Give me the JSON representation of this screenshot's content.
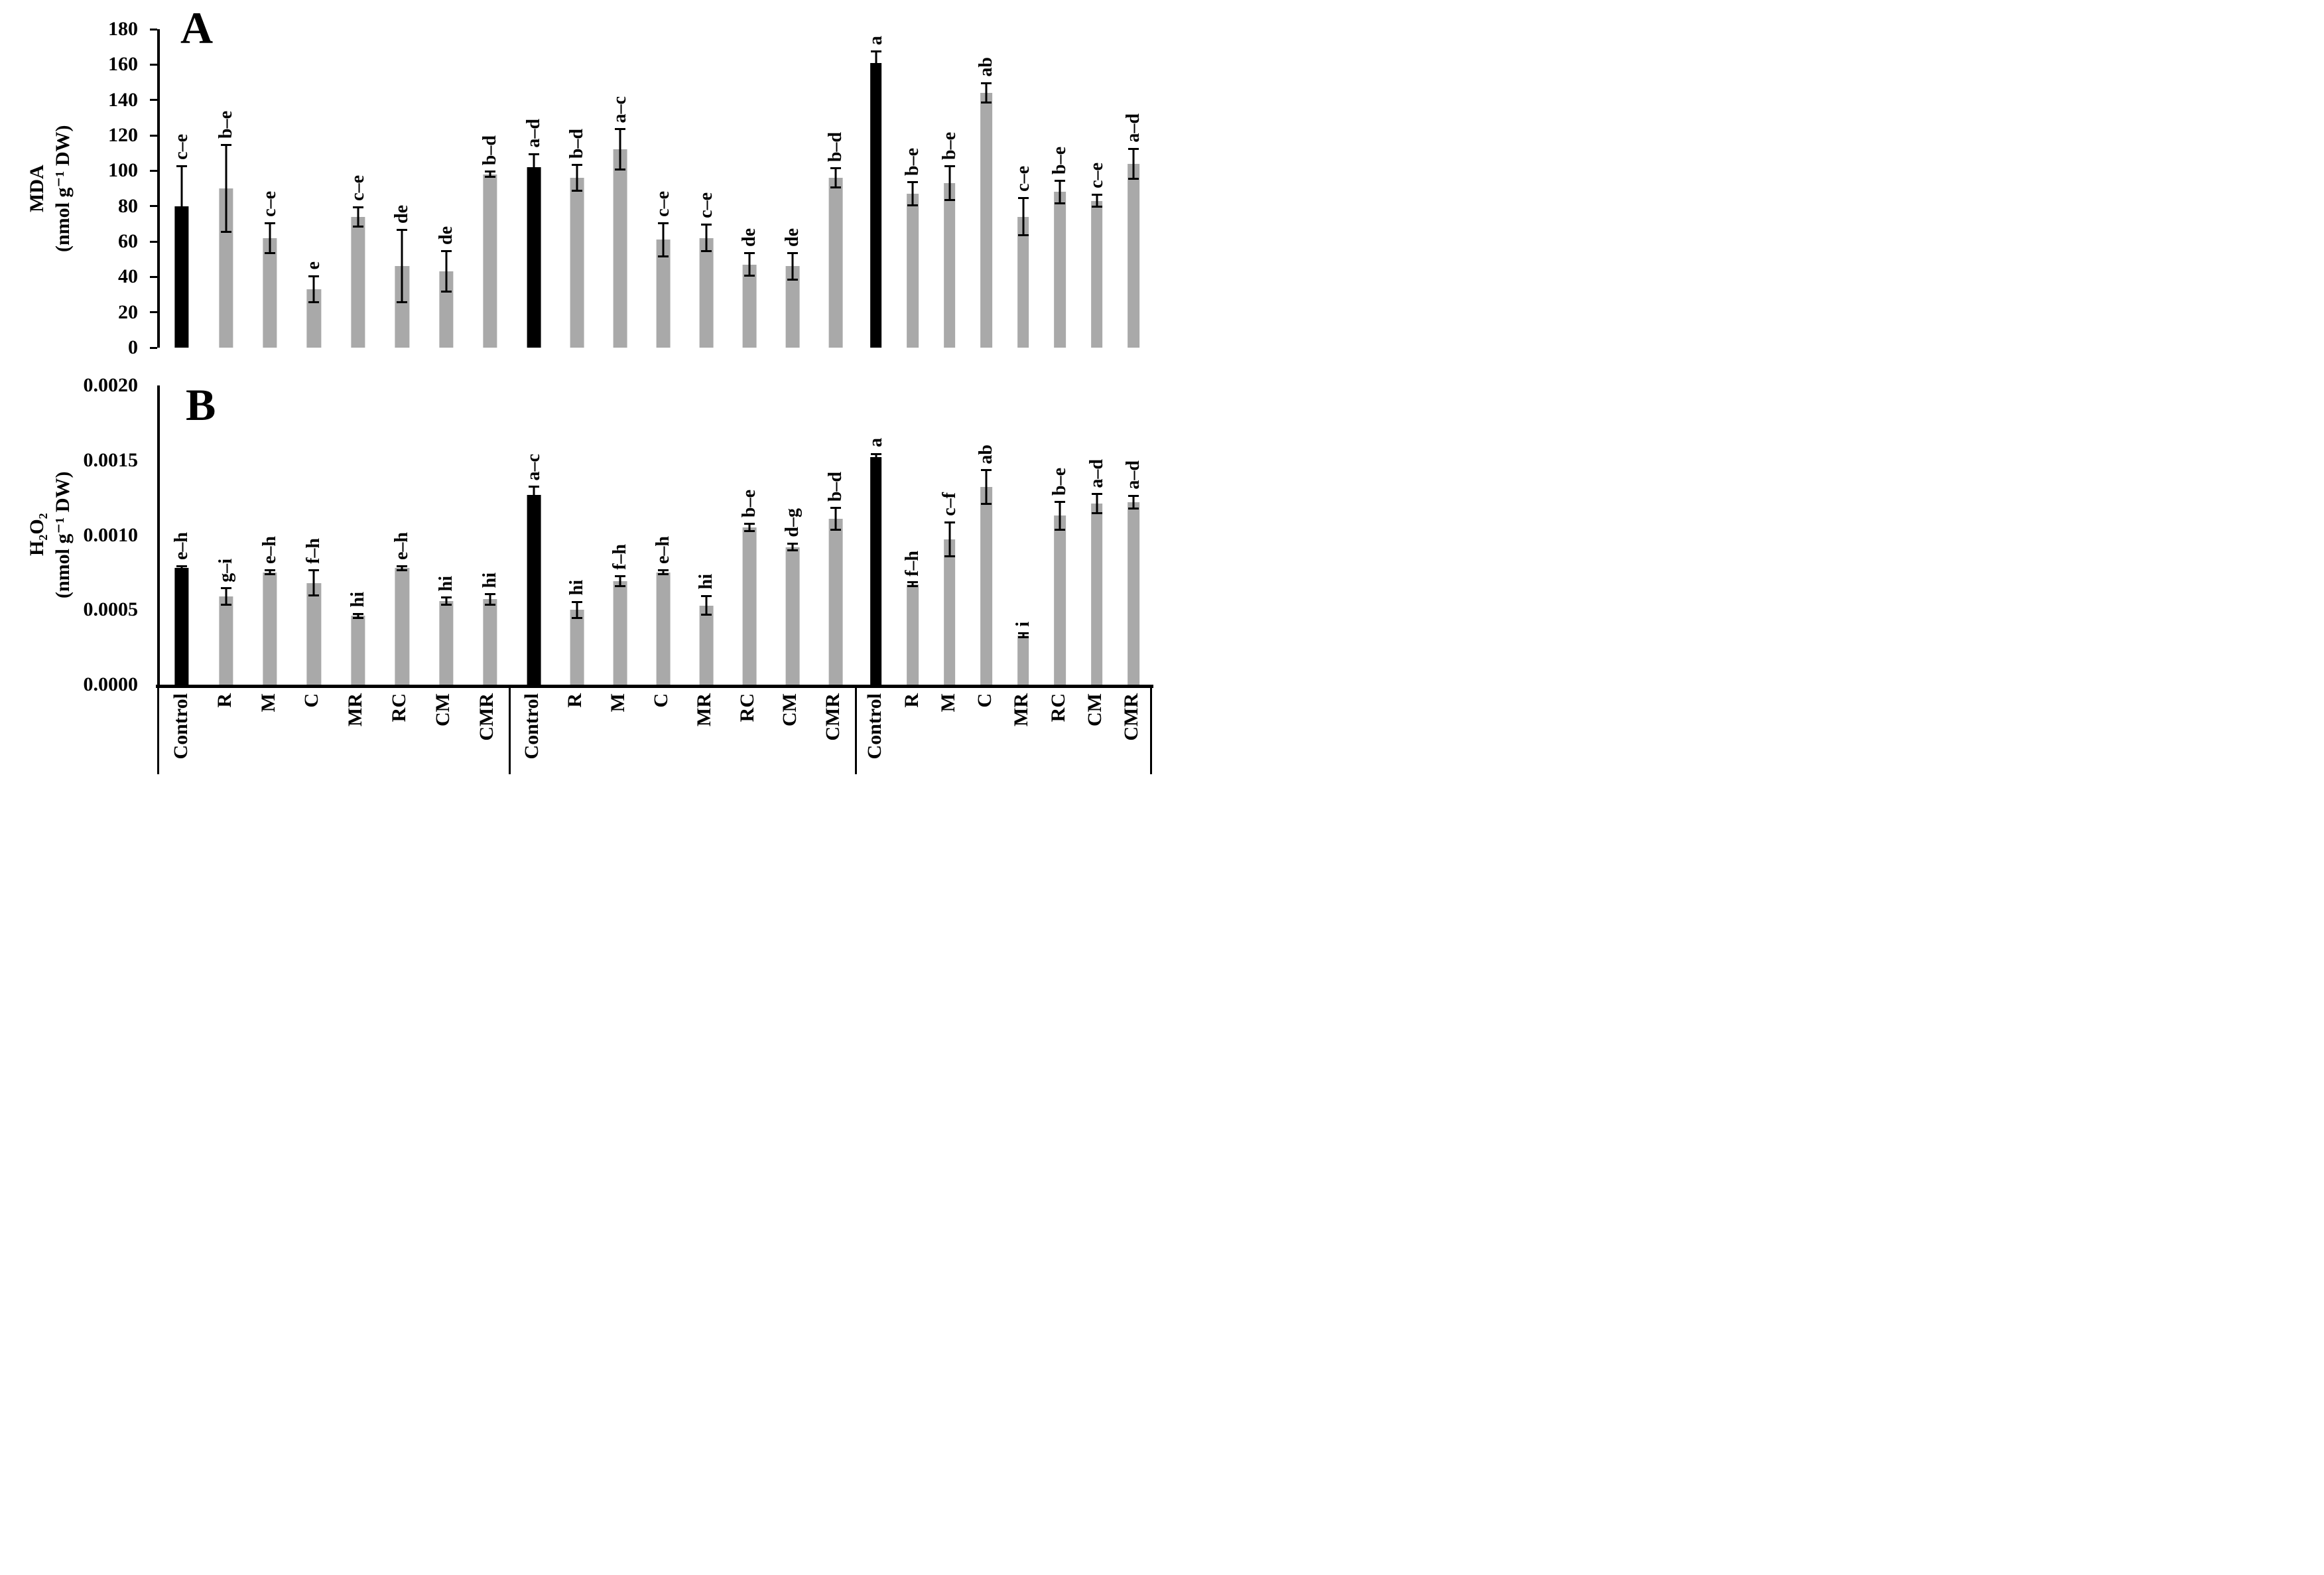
{
  "chart_data": {
    "type": "bar",
    "title": "",
    "legend": "none",
    "grid": false,
    "bar_colors": {
      "control": "#000000",
      "treatment": "#a9a9a9",
      "error": "#000000"
    },
    "categories": [
      "Control",
      "R",
      "M",
      "C",
      "MR",
      "RC",
      "CM",
      "CMR"
    ],
    "group_count": 3,
    "panels": [
      {
        "panel_label": "A",
        "ylabel_line1": "MDA",
        "ylabel_line2": "(nmol g⁻¹ DW)",
        "ylim": [
          0,
          180
        ],
        "yticks": [
          {
            "label": "0",
            "value": 0
          },
          {
            "label": "20",
            "value": 20
          },
          {
            "label": "40",
            "value": 40
          },
          {
            "label": "60",
            "value": 60
          },
          {
            "label": "80",
            "value": 80
          },
          {
            "label": "100",
            "value": 100
          },
          {
            "label": "120",
            "value": 120
          },
          {
            "label": "140",
            "value": 140
          },
          {
            "label": "160",
            "value": 160
          },
          {
            "label": "180",
            "value": 180
          }
        ],
        "groups": [
          {
            "name": "group-1",
            "bars": [
              {
                "treatment": "Control",
                "value": 80,
                "error": 23,
                "letter": "c–e"
              },
              {
                "treatment": "R",
                "value": 90,
                "error": 25,
                "letter": "b–e"
              },
              {
                "treatment": "M",
                "value": 62,
                "error": 9,
                "letter": "c–e"
              },
              {
                "treatment": "C",
                "value": 33,
                "error": 8,
                "letter": "e"
              },
              {
                "treatment": "MR",
                "value": 74,
                "error": 6,
                "letter": "c–e"
              },
              {
                "treatment": "RC",
                "value": 46,
                "error": 21,
                "letter": "de"
              },
              {
                "treatment": "CM",
                "value": 43,
                "error": 12,
                "letter": "de"
              },
              {
                "treatment": "CMR",
                "value": 98,
                "error": 2,
                "letter": "b–d"
              }
            ]
          },
          {
            "name": "group-2",
            "bars": [
              {
                "treatment": "Control",
                "value": 102,
                "error": 8,
                "letter": "a–d"
              },
              {
                "treatment": "R",
                "value": 96,
                "error": 8,
                "letter": "b–d"
              },
              {
                "treatment": "M",
                "value": 112,
                "error": 12,
                "letter": "a–c"
              },
              {
                "treatment": "C",
                "value": 61,
                "error": 10,
                "letter": "c–e"
              },
              {
                "treatment": "MR",
                "value": 62,
                "error": 8,
                "letter": "c–e"
              },
              {
                "treatment": "RC",
                "value": 47,
                "error": 7,
                "letter": "de"
              },
              {
                "treatment": "CM",
                "value": 46,
                "error": 8,
                "letter": "de"
              },
              {
                "treatment": "CMR",
                "value": 96,
                "error": 6,
                "letter": "b–d"
              }
            ]
          },
          {
            "name": "group-3",
            "bars": [
              {
                "treatment": "Control",
                "value": 161,
                "error": 7,
                "letter": "a"
              },
              {
                "treatment": "R",
                "value": 87,
                "error": 7,
                "letter": "b–e"
              },
              {
                "treatment": "M",
                "value": 93,
                "error": 10,
                "letter": "b–e"
              },
              {
                "treatment": "C",
                "value": 144,
                "error": 6,
                "letter": "ab"
              },
              {
                "treatment": "MR",
                "value": 74,
                "error": 11,
                "letter": "c–e"
              },
              {
                "treatment": "RC",
                "value": 88,
                "error": 7,
                "letter": "b–e"
              },
              {
                "treatment": "CM",
                "value": 83,
                "error": 4,
                "letter": "c–e"
              },
              {
                "treatment": "CMR",
                "value": 104,
                "error": 9,
                "letter": "a–d"
              }
            ]
          }
        ]
      },
      {
        "panel_label": "B",
        "ylabel_line1": "H₂O₂",
        "ylabel_line2": "(nmol g⁻¹ DW)",
        "ylim": [
          0,
          0.002
        ],
        "yticks": [
          {
            "label": "0.0000",
            "value": 0
          },
          {
            "label": "0.0005",
            "value": 0.0005
          },
          {
            "label": "0.0010",
            "value": 0.001
          },
          {
            "label": "0.0015",
            "value": 0.0015
          },
          {
            "label": "0.0020",
            "value": 0.002
          }
        ],
        "groups": [
          {
            "name": "group-1",
            "bars": [
              {
                "treatment": "Control",
                "value": 0.00078,
                "error": 2e-05,
                "letter": "e–h"
              },
              {
                "treatment": "R",
                "value": 0.00059,
                "error": 6e-05,
                "letter": "g–i"
              },
              {
                "treatment": "M",
                "value": 0.00075,
                "error": 2e-05,
                "letter": "e–h"
              },
              {
                "treatment": "C",
                "value": 0.00068,
                "error": 9e-05,
                "letter": "f–h"
              },
              {
                "treatment": "MR",
                "value": 0.00046,
                "error": 2e-05,
                "letter": "hi"
              },
              {
                "treatment": "RC",
                "value": 0.00078,
                "error": 2e-05,
                "letter": "e–h"
              },
              {
                "treatment": "CM",
                "value": 0.00056,
                "error": 3e-05,
                "letter": "hi"
              },
              {
                "treatment": "CMR",
                "value": 0.00057,
                "error": 4e-05,
                "letter": "hi"
              }
            ]
          },
          {
            "name": "group-2",
            "bars": [
              {
                "treatment": "Control",
                "value": 0.00127,
                "error": 6e-05,
                "letter": "a–c"
              },
              {
                "treatment": "R",
                "value": 0.0005,
                "error": 6e-05,
                "letter": "hi"
              },
              {
                "treatment": "M",
                "value": 0.00069,
                "error": 4e-05,
                "letter": "f–h"
              },
              {
                "treatment": "C",
                "value": 0.00075,
                "error": 2e-05,
                "letter": "e–h"
              },
              {
                "treatment": "MR",
                "value": 0.00053,
                "error": 7e-05,
                "letter": "hi"
              },
              {
                "treatment": "RC",
                "value": 0.00105,
                "error": 3e-05,
                "letter": "b–e"
              },
              {
                "treatment": "CM",
                "value": 0.00092,
                "error": 3e-05,
                "letter": "d–g"
              },
              {
                "treatment": "CMR",
                "value": 0.00111,
                "error": 8e-05,
                "letter": "b–d"
              }
            ]
          },
          {
            "name": "group-3",
            "bars": [
              {
                "treatment": "Control",
                "value": 0.00152,
                "error": 3e-05,
                "letter": "a"
              },
              {
                "treatment": "R",
                "value": 0.00067,
                "error": 2e-05,
                "letter": "f–h"
              },
              {
                "treatment": "M",
                "value": 0.00097,
                "error": 0.00012,
                "letter": "c–f"
              },
              {
                "treatment": "C",
                "value": 0.00132,
                "error": 0.00012,
                "letter": "ab"
              },
              {
                "treatment": "MR",
                "value": 0.00033,
                "error": 2e-05,
                "letter": "i"
              },
              {
                "treatment": "RC",
                "value": 0.00113,
                "error": 0.0001,
                "letter": "b–e"
              },
              {
                "treatment": "CM",
                "value": 0.00121,
                "error": 7e-05,
                "letter": "a–d"
              },
              {
                "treatment": "CMR",
                "value": 0.00122,
                "error": 5e-05,
                "letter": "a–d"
              }
            ]
          }
        ]
      }
    ],
    "x_tick_labels": [
      "Control",
      "R",
      "M",
      "C",
      "MR",
      "RC",
      "CM",
      "CMR"
    ]
  }
}
